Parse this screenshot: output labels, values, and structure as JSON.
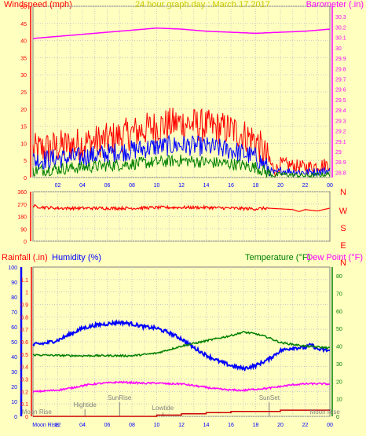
{
  "chart_data": [
    {
      "type": "line",
      "title": "24 hour graph day : March 17 2017",
      "left_axis_label": "Windspeed (mph)",
      "right_axis_label": "Barometer (.in)",
      "left_ylim": [
        0,
        50
      ],
      "left_ticks": [
        0,
        5,
        10,
        15,
        20,
        25,
        30,
        35,
        40,
        45,
        50
      ],
      "right_ylim": [
        28.75,
        30.4
      ],
      "right_ticks": [
        "28.8",
        "28.9",
        "29",
        "29.1",
        "29.2",
        "29.3",
        "29.4",
        "29.5",
        "29.6",
        "29.7",
        "29.8",
        "29.9",
        "30",
        "30.1",
        "30.2",
        "30.3"
      ],
      "x_ticks": [
        "02",
        "04",
        "06",
        "08",
        "10",
        "12",
        "14",
        "16",
        "18",
        "20",
        "22",
        "00"
      ],
      "xlim_hours": [
        0,
        24
      ],
      "series": [
        {
          "color": "#ff0000",
          "axis": "left",
          "x": [
            0,
            2,
            4,
            6,
            8,
            10,
            12,
            14,
            16,
            18,
            19.2,
            19.6,
            20,
            22,
            24
          ],
          "y": [
            8,
            9,
            10,
            11,
            13,
            15,
            16,
            15,
            14,
            11,
            4,
            2,
            4,
            3,
            4
          ]
        },
        {
          "color": "#0000ff",
          "axis": "left",
          "x": [
            0,
            2,
            4,
            6,
            8,
            10,
            12,
            14,
            16,
            18,
            19.2,
            19.6,
            20,
            22,
            24
          ],
          "y": [
            5,
            5.5,
            6,
            7,
            8,
            9,
            9.5,
            9,
            8,
            6,
            2,
            1,
            2,
            1.5,
            2
          ]
        },
        {
          "color": "#008000",
          "axis": "left",
          "x": [
            0,
            2,
            4,
            6,
            8,
            10,
            12,
            14,
            16,
            18,
            19.2,
            19.6,
            20,
            22,
            24
          ],
          "y": [
            2,
            2.5,
            3,
            3.5,
            4,
            4.5,
            5,
            4.5,
            4,
            3,
            1,
            0.5,
            1,
            0.5,
            1
          ]
        },
        {
          "color": "#ff00ff",
          "axis": "right",
          "x": [
            0,
            2,
            4,
            6,
            8,
            10,
            12,
            14,
            16,
            18,
            20,
            22,
            24
          ],
          "y": [
            30.09,
            30.11,
            30.13,
            30.15,
            30.17,
            30.19,
            30.18,
            30.16,
            30.15,
            30.14,
            30.15,
            30.16,
            30.18
          ]
        }
      ]
    },
    {
      "type": "line",
      "left_ticks": [
        0,
        90,
        180,
        270,
        360
      ],
      "left_ylim": [
        0,
        360
      ],
      "right_labels": [
        "N",
        "W",
        "S",
        "E",
        "N"
      ],
      "xlim_hours": [
        0,
        24
      ],
      "series": [
        {
          "color": "#ff0000",
          "x": [
            0,
            1,
            2,
            4,
            6,
            8,
            10,
            12,
            14,
            16,
            18,
            19,
            20,
            21,
            21.5,
            22,
            23,
            24
          ],
          "y": [
            255,
            245,
            240,
            240,
            240,
            240,
            245,
            245,
            245,
            240,
            235,
            240,
            235,
            230,
            215,
            230,
            220,
            240
          ]
        }
      ]
    },
    {
      "type": "line",
      "labels": {
        "rainfall": "Rainfall (.in)",
        "humidity": "Humidity (%)",
        "temperature": "Temperature (°F)",
        "dew_point": "Dew Point (°F)"
      },
      "left1_ticks": [
        "0",
        "0.1",
        "0.2",
        "0.3",
        "0.4",
        "0.5",
        "0.6",
        "0.7",
        "0.8",
        "0.9",
        "1",
        "1.1"
      ],
      "left1_ylim": [
        0,
        1.2
      ],
      "left2_ticks": [
        0,
        10,
        20,
        30,
        40,
        50,
        60,
        70,
        80,
        90,
        100
      ],
      "left2_ylim": [
        0,
        100
      ],
      "right_ticks": [
        0,
        10,
        20,
        30,
        40,
        50,
        60,
        70,
        80
      ],
      "right_ylim": [
        0,
        85
      ],
      "x_ticks": [
        "Moon Rise",
        "02",
        "04",
        "06",
        "08",
        "10",
        "12",
        "14",
        "16",
        "18",
        "20",
        "22",
        "00"
      ],
      "xlim_hours": [
        0,
        24
      ],
      "annotations": [
        {
          "text": "Moon Rise",
          "hour": 0.3
        },
        {
          "text": "Hightide",
          "hour": 4.2
        },
        {
          "text": "SunRise",
          "hour": 7.0
        },
        {
          "text": "Lowtide",
          "hour": 10.5
        },
        {
          "text": "SunSet",
          "hour": 19.1
        },
        {
          "text": "Moon Rise",
          "hour": 23.6
        }
      ],
      "series": [
        {
          "name": "Humidity (%)",
          "color": "#0000ff",
          "axis": "left2",
          "x": [
            0,
            1,
            2,
            3,
            4,
            5,
            6,
            7,
            8,
            9,
            10,
            11,
            12,
            13,
            14,
            15,
            16,
            17,
            18,
            19,
            19.5,
            20,
            21,
            22,
            22.5,
            23,
            24
          ],
          "y": [
            48,
            49,
            51,
            55,
            59,
            61,
            62,
            63,
            62,
            60,
            59,
            56,
            52,
            46,
            41,
            37,
            34,
            32,
            34,
            38,
            41,
            44,
            46,
            46,
            48,
            45,
            44
          ]
        },
        {
          "name": "Temperature (°F)",
          "color": "#008000",
          "axis": "right",
          "x": [
            0,
            2,
            4,
            6,
            8,
            10,
            12,
            14,
            16,
            17,
            18,
            19,
            20,
            22,
            24
          ],
          "y": [
            35,
            34.7,
            34.5,
            34.6,
            34.5,
            36,
            40,
            43,
            46,
            48,
            47,
            45,
            42,
            40,
            39
          ]
        },
        {
          "name": "Dew Point (°F)",
          "color": "#ff00ff",
          "axis": "right",
          "x": [
            0,
            1,
            2,
            3,
            4,
            5,
            6,
            7,
            8,
            9,
            10,
            11,
            12,
            13,
            14,
            15,
            16,
            17,
            18,
            19,
            20,
            21,
            22,
            23,
            24
          ],
          "y": [
            14,
            14.5,
            15,
            16,
            17.5,
            18.5,
            19,
            19.5,
            19.2,
            18.8,
            19,
            18.5,
            18.5,
            17.5,
            16.5,
            15.5,
            15,
            14.8,
            15.5,
            16,
            17,
            18,
            18.5,
            18.6,
            18.4
          ]
        },
        {
          "name": "Rainfall (.in)",
          "color": "#cc0000",
          "axis": "left1",
          "x": [
            0,
            8,
            10,
            12,
            14,
            16,
            18,
            20,
            22,
            24
          ],
          "y": [
            0,
            0,
            0.01,
            0.02,
            0.03,
            0.04,
            0.04,
            0.05,
            0.05,
            0.05
          ]
        }
      ]
    }
  ]
}
